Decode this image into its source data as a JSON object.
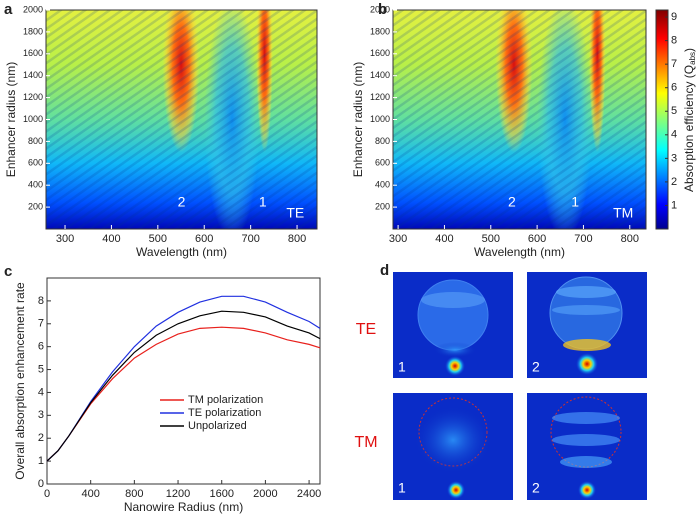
{
  "chart_data": [
    {
      "type": "heatmap",
      "panel_label": "a",
      "xlabel": "Wavelength (nm)",
      "ylabel": "Enhancer radius (nm)",
      "xlim": [
        259,
        843
      ],
      "xticks": [
        300,
        400,
        500,
        600,
        700,
        800
      ],
      "ylim": [
        0,
        2000
      ],
      "yticks": [
        200,
        400,
        600,
        800,
        1000,
        1200,
        1400,
        1600,
        1800,
        2000
      ],
      "annotations": [
        "2",
        "1",
        "TE"
      ]
    },
    {
      "type": "heatmap",
      "panel_label": "b",
      "xlabel": "Wavelength (nm)",
      "ylabel": "Enhancer radius (nm)",
      "xlim": [
        289,
        835
      ],
      "xticks": [
        300,
        400,
        500,
        600,
        700,
        800
      ],
      "ylim": [
        0,
        2000
      ],
      "yticks": [
        200,
        400,
        600,
        800,
        1000,
        1200,
        1400,
        1600,
        1800,
        2000
      ],
      "annotations": [
        "2",
        "1",
        "TM"
      ],
      "colorbar": {
        "lim": [
          0,
          9.3
        ],
        "ticks": [
          1,
          2,
          3,
          4,
          5,
          6,
          7,
          8,
          9
        ],
        "label": "Absorption efficiency (Q",
        "label_sub": "abs",
        "label_end": ")"
      }
    },
    {
      "type": "line",
      "panel_label": "c",
      "xlabel": "Nanowire Radius (nm)",
      "ylabel": "Overall absorption enhancement rate",
      "x": [
        0,
        100,
        200,
        400,
        600,
        800,
        1000,
        1200,
        1400,
        1600,
        1800,
        2000,
        2200,
        2400,
        2500
      ],
      "xlim": [
        0,
        2500
      ],
      "xticks": [
        0,
        400,
        800,
        1200,
        1600,
        2000,
        2400
      ],
      "ylim": [
        0,
        9
      ],
      "yticks": [
        0,
        1,
        2,
        3,
        4,
        5,
        6,
        7,
        8
      ],
      "series": [
        {
          "name": "TM polarization",
          "color": "#e8201c",
          "values": [
            1,
            1.45,
            2.1,
            3.5,
            4.6,
            5.5,
            6.1,
            6.55,
            6.8,
            6.85,
            6.8,
            6.6,
            6.3,
            6.1,
            5.95
          ]
        },
        {
          "name": "TE polarization",
          "color": "#2030e0",
          "values": [
            1,
            1.45,
            2.1,
            3.6,
            4.9,
            6.0,
            6.9,
            7.5,
            7.95,
            8.2,
            8.2,
            7.95,
            7.5,
            7.1,
            6.8
          ]
        },
        {
          "name": "Unpolarized",
          "color": "#000000",
          "values": [
            1,
            1.45,
            2.1,
            3.55,
            4.75,
            5.75,
            6.5,
            7.0,
            7.35,
            7.55,
            7.5,
            7.3,
            6.9,
            6.6,
            6.35
          ]
        }
      ]
    }
  ],
  "figure_d": {
    "panel_label": "d",
    "rows": [
      {
        "label": "TE",
        "panels": [
          "1",
          "2"
        ]
      },
      {
        "label": "TM",
        "panels": [
          "1",
          "2"
        ]
      }
    ]
  }
}
